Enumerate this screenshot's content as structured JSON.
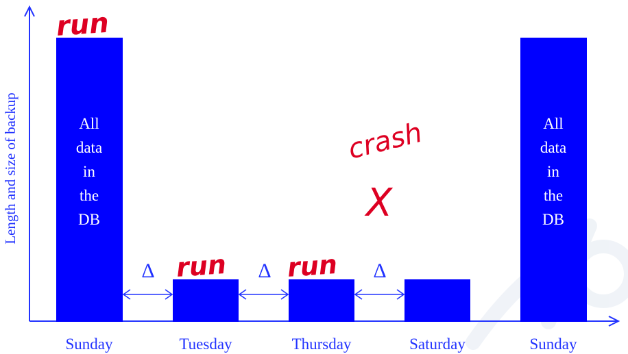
{
  "diagram": {
    "y_axis_label": "Length and size of backup",
    "colors": {
      "bar": "#0000ff",
      "axis": "#2233ff",
      "bar_text": "#ffffff",
      "annotation": "#dd0022",
      "watermark": "#eef2f7"
    },
    "days": [
      "Sunday",
      "Tuesday",
      "Thursday",
      "Saturday",
      "Sunday"
    ],
    "full_backup_text": [
      "All",
      "data",
      "in",
      "the",
      "DB"
    ],
    "delta_symbol": "Δ",
    "annotations": {
      "run": "run",
      "crash": "crash",
      "crash_mark": "X"
    }
  }
}
